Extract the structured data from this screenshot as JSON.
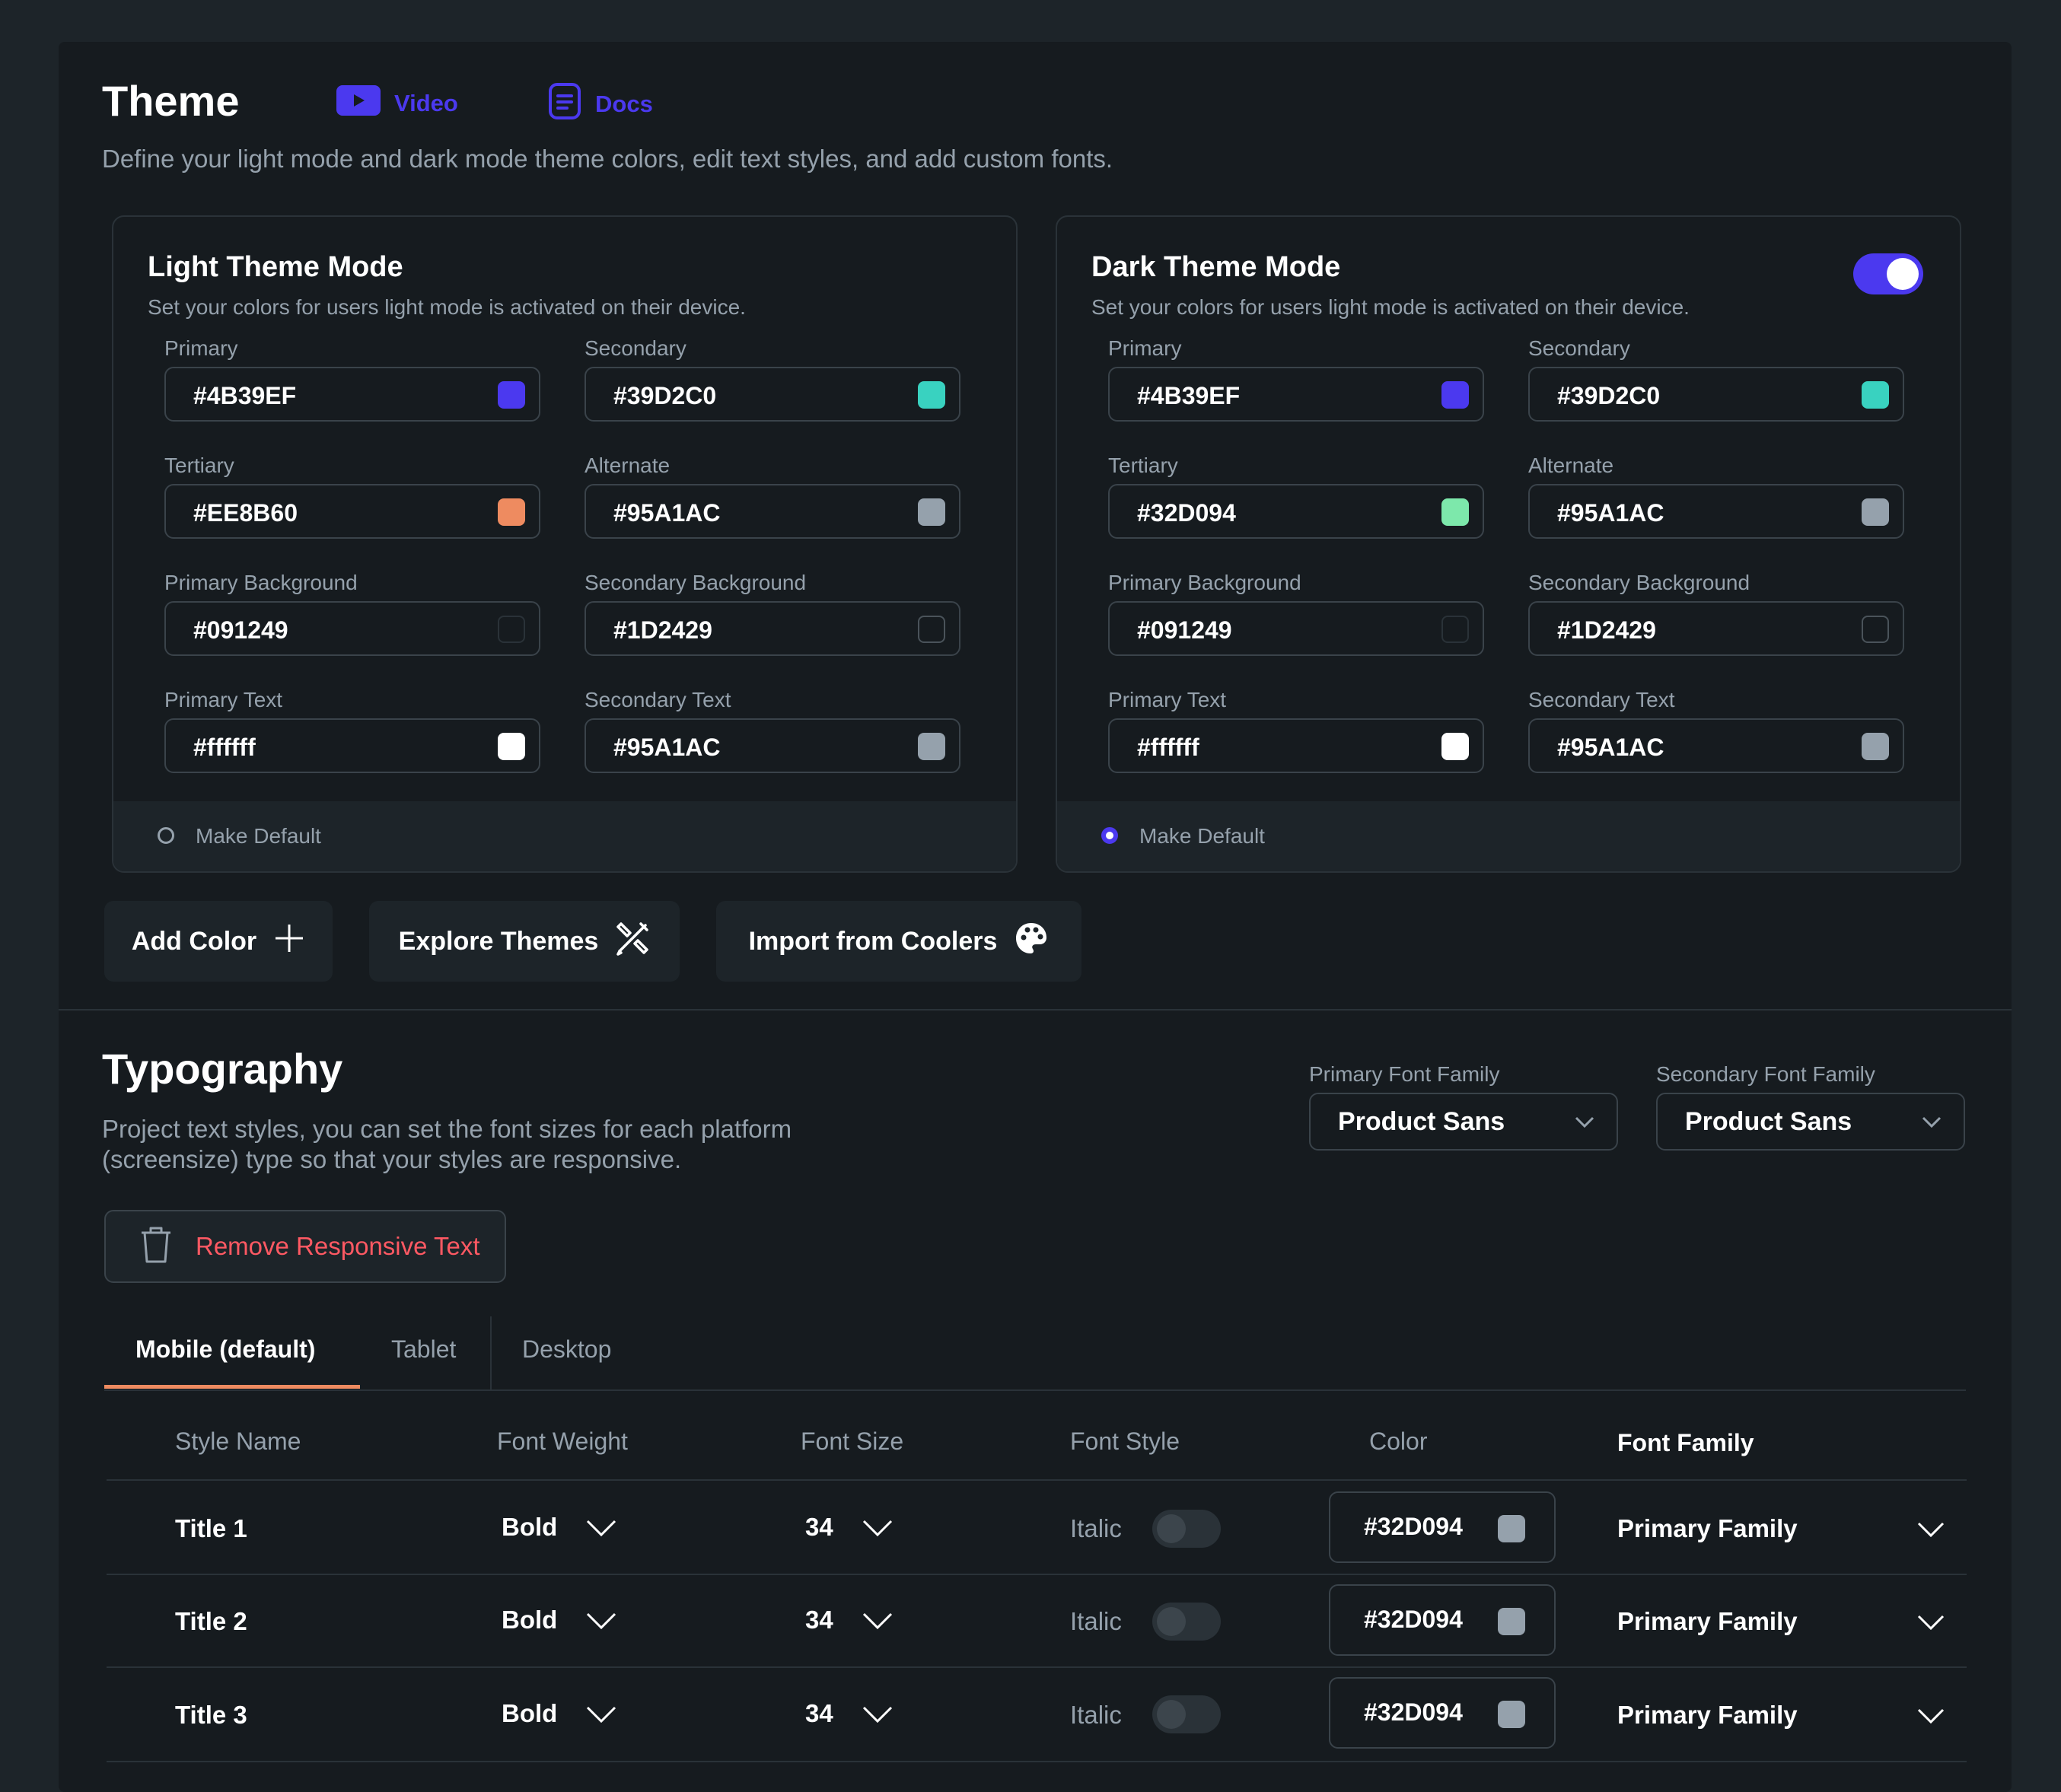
{
  "theme": {
    "title": "Theme",
    "video_label": "Video",
    "docs_label": "Docs",
    "description": "Define your light mode and dark mode theme colors, edit text styles, and add custom fonts."
  },
  "light": {
    "title": "Light Theme Mode",
    "subtitle": "Set your colors for users light mode is activated on their device.",
    "fields": [
      {
        "label": "Primary",
        "value": "#4B39EF",
        "color": "#4b39ef"
      },
      {
        "label": "Secondary",
        "value": "#39D2C0",
        "color": "#39d2c0"
      },
      {
        "label": "Tertiary",
        "value": "#EE8B60",
        "color": "#ee8b60"
      },
      {
        "label": "Alternate",
        "value": "#95A1AC",
        "color": "#95a1ac"
      },
      {
        "label": "Primary Background",
        "value": "#091249",
        "color": "#161b1f"
      },
      {
        "label": "Secondary Background",
        "value": "#1D2429",
        "color": "#161b1f"
      },
      {
        "label": "Primary Text",
        "value": "#ffffff",
        "color": "#ffffff"
      },
      {
        "label": "Secondary Text",
        "value": "#95A1AC",
        "color": "#95a1ac"
      }
    ],
    "make_default": "Make Default",
    "is_default": false
  },
  "dark": {
    "title": "Dark Theme Mode",
    "subtitle": "Set your colors for users light mode is activated on their device.",
    "enabled": true,
    "fields": [
      {
        "label": "Primary",
        "value": "#4B39EF",
        "color": "#4b39ef"
      },
      {
        "label": "Secondary",
        "value": "#39D2C0",
        "color": "#39d2c0"
      },
      {
        "label": "Tertiary",
        "value": "#32D094",
        "color": "#7de8ab"
      },
      {
        "label": "Alternate",
        "value": "#95A1AC",
        "color": "#95a1ac"
      },
      {
        "label": "Primary Background",
        "value": "#091249",
        "color": "#161b1f"
      },
      {
        "label": "Secondary Background",
        "value": "#1D2429",
        "color": "#161b1f"
      },
      {
        "label": "Primary Text",
        "value": "#ffffff",
        "color": "#ffffff"
      },
      {
        "label": "Secondary Text",
        "value": "#95A1AC",
        "color": "#95a1ac"
      }
    ],
    "make_default": "Make Default",
    "is_default": true
  },
  "actions": {
    "add_color": "Add Color",
    "explore_themes": "Explore Themes",
    "import_coolers": "Import from Coolers"
  },
  "typography": {
    "title": "Typography",
    "description_line1": "Project text styles, you can set the font sizes for each platform",
    "description_line2": "(screensize) type so that your styles are responsive.",
    "primary_font_label": "Primary Font Family",
    "primary_font_value": "Product Sans",
    "secondary_font_label": "Secondary Font Family",
    "secondary_font_value": "Product Sans",
    "remove_responsive": "Remove Responsive Text",
    "tabs": [
      "Mobile (default)",
      "Tablet",
      "Desktop"
    ],
    "active_tab": 0,
    "columns": [
      "Style Name",
      "Font Weight",
      "Font Size",
      "Font Style",
      "Color",
      "Font Family"
    ],
    "rows": [
      {
        "name": "Title 1",
        "weight": "Bold",
        "size": "34",
        "style": "Italic",
        "italic": false,
        "color": "#32D094",
        "swatch": "#95a1ac",
        "family": "Primary Family"
      },
      {
        "name": "Title 2",
        "weight": "Bold",
        "size": "34",
        "style": "Italic",
        "italic": false,
        "color": "#32D094",
        "swatch": "#95a1ac",
        "family": "Primary Family"
      },
      {
        "name": "Title 3",
        "weight": "Bold",
        "size": "34",
        "style": "Italic",
        "italic": false,
        "color": "#32D094",
        "swatch": "#95a1ac",
        "family": "Primary Family"
      }
    ]
  },
  "colors": {
    "accent": "#4b39ef",
    "danger": "#ff5963",
    "tab_underline": "#ee8b60"
  }
}
